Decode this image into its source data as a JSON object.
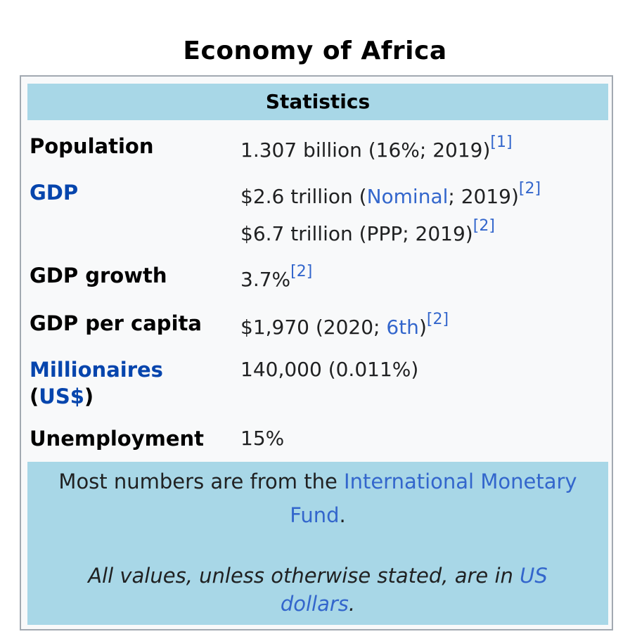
{
  "caption": "Economy of Africa",
  "header": "Statistics",
  "rows": {
    "population": {
      "label": "Population",
      "value": "1.307 billion (16%; 2019)",
      "ref": "[1]"
    },
    "gdp": {
      "label": "GDP",
      "line1_pre": "$2.6 trillion (",
      "line1_link": "Nominal",
      "line1_post": "; 2019)",
      "line1_ref": "[2]",
      "line2": "$6.7 trillion (PPP; 2019)",
      "line2_ref": "[2]"
    },
    "growth": {
      "label": "GDP growth",
      "value": "3.7%",
      "ref": "[2]"
    },
    "per_capita": {
      "label": "GDP per capita",
      "pre": "$1,970 (2020; ",
      "link": "6th",
      "post": ")",
      "ref": "[2]"
    },
    "millionaires": {
      "label_link": "Millionaires",
      "label_open": "(",
      "label_link2": "US$",
      "label_close": ")",
      "value": "140,000 (0.011%)"
    },
    "unemployment": {
      "label": "Unemployment",
      "value": "15%"
    }
  },
  "footer": {
    "pre": "Most numbers are from the ",
    "link_part1": "International Monetary",
    "link_part2": "Fund",
    "post": ".",
    "note_pre": "All values, unless otherwise stated, are in ",
    "note_link1": "US",
    "note_link2": "dollars",
    "note_post": "."
  },
  "colors": {
    "header_bg": "#a8d7e7",
    "link": "#3366cc",
    "label_link": "#0645ad",
    "box_bg": "#f8f9fa",
    "border": "#a2a9b1"
  }
}
